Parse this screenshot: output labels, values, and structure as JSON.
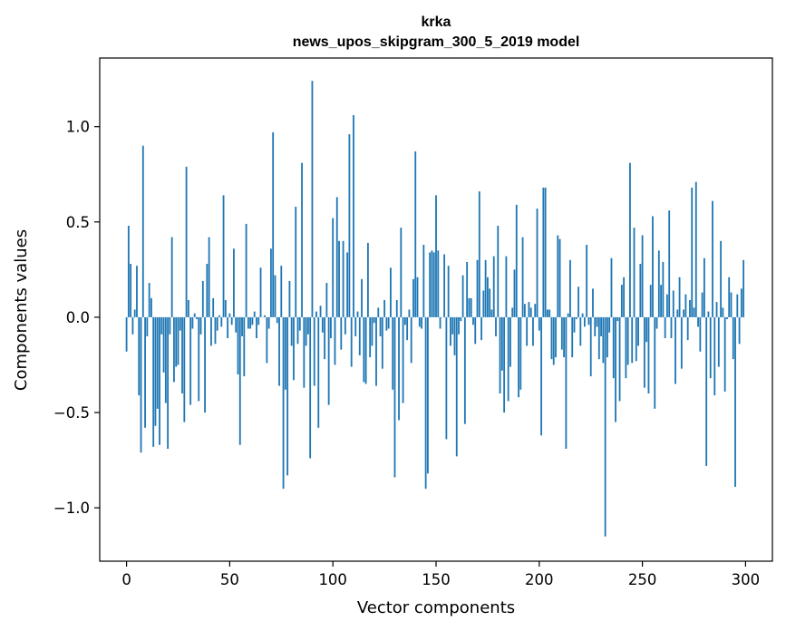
{
  "chart_data": {
    "type": "bar",
    "title": "krka",
    "subtitle": "news_upos_skipgram_300_5_2019 model",
    "xlabel": "Vector components",
    "ylabel": "Components values",
    "xlim": [
      -13,
      313
    ],
    "ylim": [
      -1.28,
      1.36
    ],
    "xticks": [
      0,
      50,
      100,
      150,
      200,
      250,
      300
    ],
    "xtick_labels": [
      "0",
      "50",
      "100",
      "150",
      "200",
      "250",
      "300"
    ],
    "yticks": [
      -1.0,
      -0.5,
      0.0,
      0.5,
      1.0
    ],
    "ytick_labels": [
      "−1.0",
      "−0.5",
      "0.0",
      "0.5",
      "1.0"
    ],
    "grid": false,
    "color": "#1f77b4",
    "values": [
      -0.18,
      0.48,
      0.28,
      -0.09,
      0.04,
      0.27,
      -0.41,
      -0.71,
      0.9,
      -0.58,
      -0.1,
      0.18,
      0.1,
      -0.68,
      -0.57,
      -0.48,
      -0.67,
      -0.09,
      -0.29,
      -0.45,
      -0.69,
      -0.09,
      0.42,
      -0.34,
      -0.26,
      -0.25,
      -0.07,
      -0.4,
      -0.55,
      0.79,
      0.09,
      -0.46,
      -0.06,
      0.02,
      -0.01,
      -0.44,
      -0.09,
      0.19,
      -0.5,
      0.28,
      0.42,
      -0.15,
      0.1,
      -0.14,
      -0.07,
      0.01,
      -0.05,
      0.64,
      0.09,
      -0.11,
      0.02,
      -0.04,
      0.36,
      -0.08,
      -0.3,
      -0.67,
      -0.1,
      -0.31,
      0.49,
      -0.06,
      -0.06,
      -0.04,
      0.03,
      -0.11,
      -0.04,
      0.26,
      0.0,
      0.01,
      -0.24,
      -0.06,
      0.36,
      0.97,
      0.22,
      -0.03,
      -0.36,
      0.27,
      -0.9,
      -0.38,
      -0.83,
      0.19,
      -0.15,
      -0.33,
      0.58,
      -0.14,
      -0.07,
      0.81,
      -0.37,
      -0.15,
      -0.09,
      -0.74,
      1.24,
      -0.36,
      0.03,
      -0.58,
      0.06,
      -0.08,
      -0.22,
      0.18,
      -0.46,
      -0.11,
      0.52,
      -0.25,
      0.63,
      0.4,
      -0.17,
      0.4,
      -0.09,
      0.34,
      0.96,
      -0.26,
      1.06,
      -0.1,
      0.03,
      -0.2,
      0.2,
      -0.34,
      -0.35,
      0.39,
      -0.21,
      -0.15,
      -0.03,
      -0.36,
      0.05,
      -0.1,
      -0.27,
      0.09,
      -0.07,
      -0.06,
      0.26,
      -0.38,
      -0.84,
      0.09,
      -0.54,
      0.47,
      -0.45,
      -0.04,
      -0.12,
      0.04,
      -0.24,
      0.2,
      0.87,
      0.21,
      -0.05,
      -0.06,
      0.38,
      -0.9,
      -0.82,
      0.34,
      0.35,
      0.34,
      0.64,
      0.35,
      -0.06,
      0.0,
      0.33,
      -0.64,
      0.27,
      -0.15,
      -0.09,
      -0.2,
      -0.73,
      -0.09,
      -0.02,
      0.22,
      -0.56,
      0.29,
      0.1,
      0.1,
      -0.04,
      -0.14,
      0.3,
      0.66,
      -0.12,
      0.14,
      0.3,
      0.21,
      0.15,
      0.04,
      0.32,
      -0.1,
      0.48,
      -0.4,
      -0.28,
      -0.5,
      0.32,
      -0.44,
      -0.26,
      0.05,
      0.25,
      0.59,
      -0.42,
      -0.38,
      0.42,
      0.07,
      -0.15,
      0.08,
      0.05,
      -0.15,
      0.07,
      0.57,
      -0.07,
      -0.62,
      0.68,
      0.68,
      0.04,
      0.04,
      -0.22,
      -0.25,
      -0.21,
      0.43,
      0.41,
      -0.17,
      -0.21,
      -0.69,
      0.02,
      0.3,
      -0.21,
      -0.08,
      -0.01,
      0.16,
      -0.15,
      0.02,
      -0.05,
      0.38,
      -0.04,
      -0.31,
      0.15,
      -0.1,
      -0.05,
      -0.22,
      -0.1,
      -0.24,
      -1.15,
      -0.21,
      -0.08,
      0.31,
      -0.32,
      -0.55,
      -0.02,
      -0.44,
      0.17,
      0.21,
      -0.32,
      -0.25,
      0.81,
      -0.24,
      0.47,
      -0.23,
      -0.15,
      0.28,
      0.43,
      -0.37,
      -0.13,
      -0.4,
      0.17,
      0.53,
      -0.48,
      -0.06,
      0.35,
      0.17,
      0.29,
      -0.11,
      0.12,
      0.56,
      -0.11,
      0.14,
      -0.35,
      0.04,
      0.21,
      -0.27,
      0.04,
      0.12,
      -0.12,
      0.09,
      0.68,
      0.05,
      0.71,
      -0.05,
      -0.18,
      0.13,
      0.31,
      -0.78,
      0.03,
      -0.32,
      0.61,
      -0.41,
      0.08,
      -0.26,
      0.4,
      0.05,
      -0.39,
      -0.01,
      0.21,
      0.13,
      -0.22,
      -0.89,
      0.12,
      -0.14,
      0.15,
      0.3
    ]
  }
}
